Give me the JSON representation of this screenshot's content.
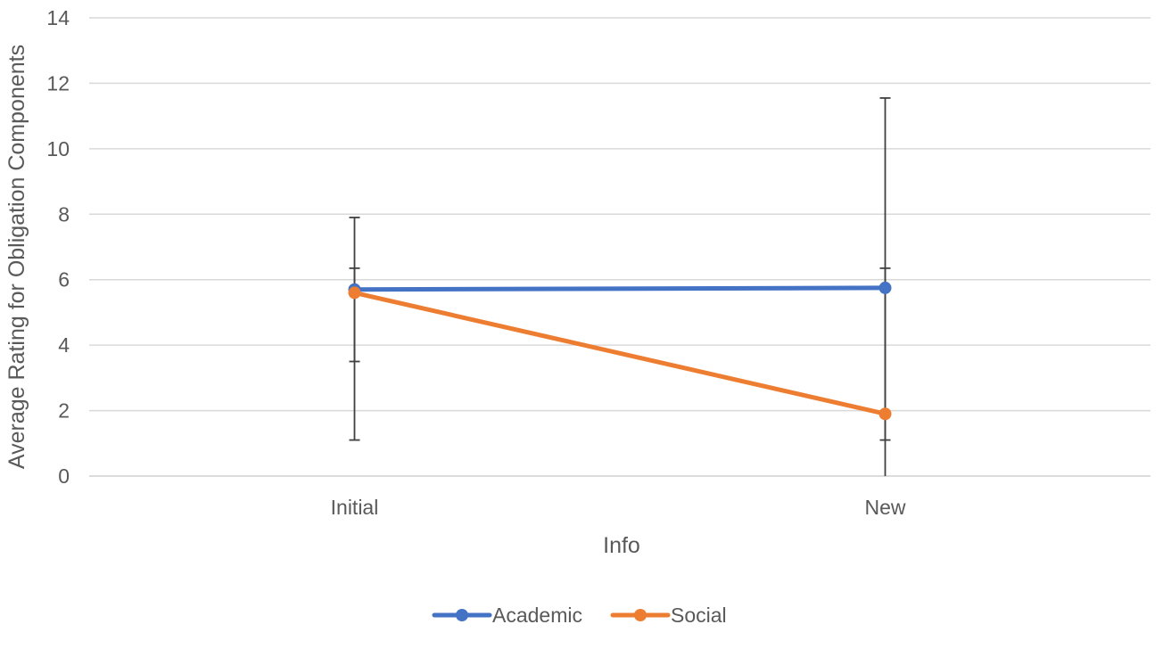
{
  "chart_data": {
    "type": "line",
    "title": "",
    "xlabel": "Info",
    "ylabel": "Average Rating for Obligation Components",
    "categories": [
      "Initial",
      "New"
    ],
    "ylim": [
      0,
      14
    ],
    "yticks": [
      "0",
      "2",
      "4",
      "6",
      "8",
      "10",
      "12",
      "14"
    ],
    "grid": true,
    "legend_position": "bottom",
    "series": [
      {
        "name": "Academic",
        "color": "#4472C4",
        "values": [
          5.7,
          5.75
        ],
        "error_low": [
          3.5,
          1.1
        ],
        "error_high": [
          7.9,
          11.55
        ]
      },
      {
        "name": "Social",
        "color": "#ED7D31",
        "values": [
          5.6,
          1.9
        ],
        "error_low": [
          1.1,
          0.0
        ],
        "error_high": [
          6.35,
          6.35
        ]
      }
    ]
  }
}
